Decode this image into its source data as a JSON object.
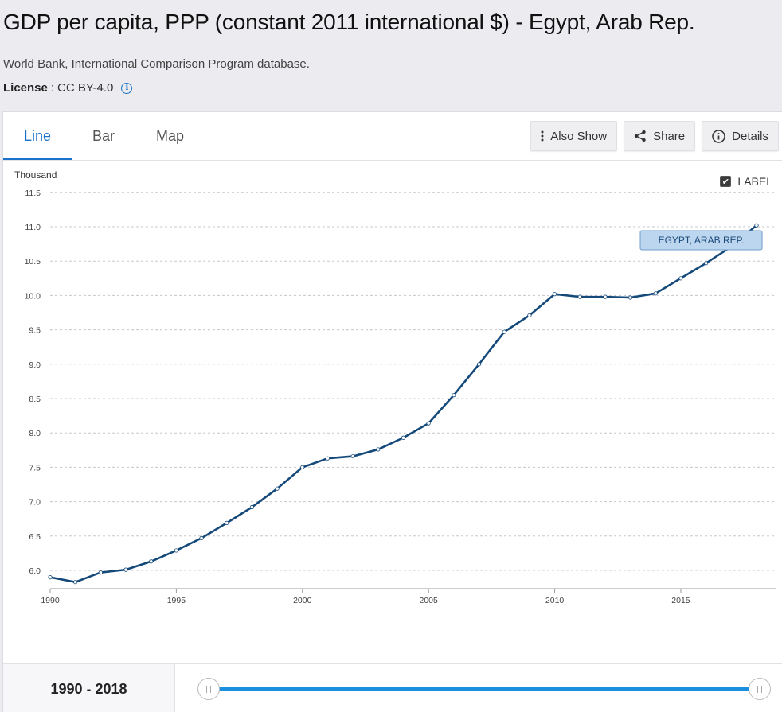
{
  "header": {
    "title": "GDP per capita, PPP (constant 2011 international $) - Egypt, Arab Rep.",
    "source": "World Bank, International Comparison Program database.",
    "license_label": "License",
    "license_value": "CC BY-4.0",
    "info_glyph": "i"
  },
  "tabs": [
    {
      "label": "Line",
      "active": true
    },
    {
      "label": "Bar",
      "active": false
    },
    {
      "label": "Map",
      "active": false
    }
  ],
  "toolbar": {
    "also_show": "Also Show",
    "share": "Share",
    "details": "Details"
  },
  "label_toggle": {
    "text": "LABEL",
    "checked": true
  },
  "range": {
    "start": "1990",
    "end": "2018",
    "separator": "-"
  },
  "colors": {
    "accent": "#1a73c8",
    "line": "#14497a",
    "label_fill": "#bcd6ef",
    "label_stroke": "#6f9fcc"
  },
  "chart_data": {
    "type": "line",
    "unit_label": "Thousand",
    "x_ticks": [
      1990,
      1995,
      2000,
      2005,
      2010,
      2015
    ],
    "y_ticks": [
      6.0,
      6.5,
      7.0,
      7.5,
      8.0,
      8.5,
      9.0,
      9.5,
      10.0,
      10.5,
      11.0,
      11.5
    ],
    "xlim": [
      1990,
      2018
    ],
    "ylim": [
      5.8,
      11.5
    ],
    "grid": true,
    "series": [
      {
        "name": "EGYPT, ARAB REP.",
        "x": [
          1990,
          1991,
          1992,
          1993,
          1994,
          1995,
          1996,
          1997,
          1998,
          1999,
          2000,
          2001,
          2002,
          2003,
          2004,
          2005,
          2006,
          2007,
          2008,
          2009,
          2010,
          2011,
          2012,
          2013,
          2014,
          2015,
          2016,
          2017,
          2018
        ],
        "values": [
          5.9,
          5.83,
          5.97,
          6.01,
          6.13,
          6.29,
          6.47,
          6.69,
          6.92,
          7.19,
          7.5,
          7.63,
          7.66,
          7.76,
          7.93,
          8.14,
          8.55,
          9.0,
          9.47,
          9.71,
          10.02,
          9.98,
          9.98,
          9.97,
          10.03,
          10.25,
          10.47,
          10.71,
          11.02
        ]
      }
    ]
  }
}
